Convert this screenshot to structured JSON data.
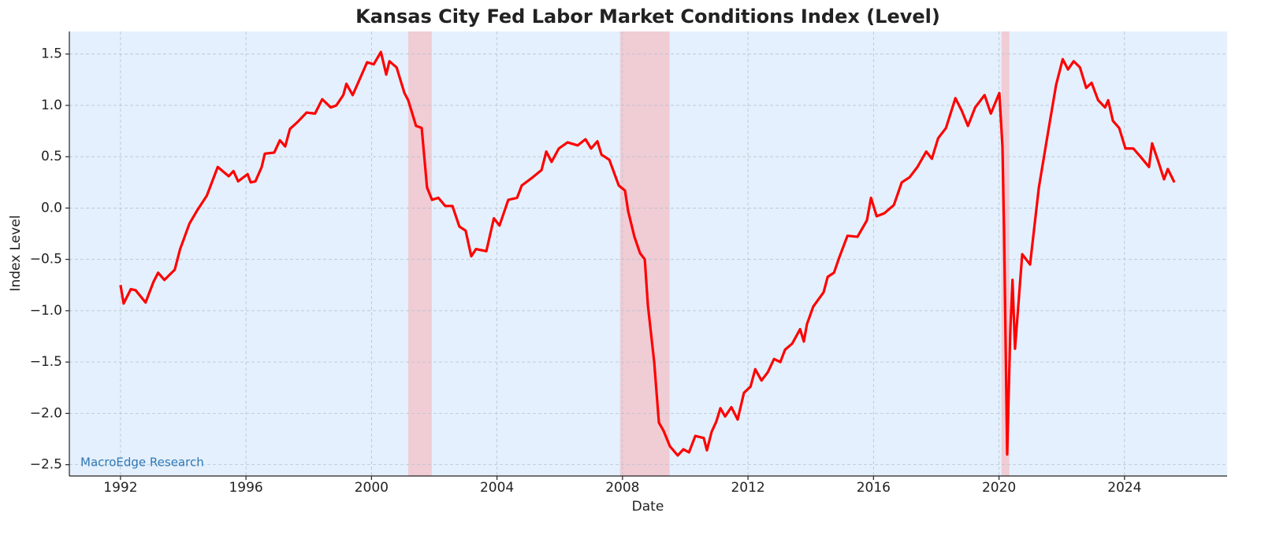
{
  "chart_data": {
    "type": "line",
    "title": "Kansas City Fed Labor Market Conditions Index (Level)",
    "x_label": "Date",
    "y_label": "Index Level",
    "annotation": "MacroEdge Research",
    "color": "#ff0000",
    "background": "#e4f0fd",
    "shade_color": "#f2c6ce",
    "grid": true,
    "xlim": [
      1990.37,
      2027.27
    ],
    "xticks": [
      1992,
      1996,
      2000,
      2004,
      2008,
      2012,
      2016,
      2020,
      2024
    ],
    "ylim": [
      -2.61,
      1.72
    ],
    "yticks": [
      {
        "value": -2.5,
        "label": "−2.5"
      },
      {
        "value": -2,
        "label": "−2.0"
      },
      {
        "value": -1.5,
        "label": "−1.5"
      },
      {
        "value": -1,
        "label": "−1.0"
      },
      {
        "value": -0.5,
        "label": "−0.5"
      },
      {
        "value": 0,
        "label": "0.0"
      },
      0.5,
      {
        "value": 1,
        "label": "1.0"
      },
      1.5
    ],
    "shaded_periods": [
      [
        2001.17,
        2001.92
      ],
      [
        2007.92,
        2009.5
      ],
      [
        2020.08,
        2020.33
      ]
    ],
    "x": [
      1992.0,
      1992.1,
      1992.33,
      1992.48,
      1992.8,
      1993.05,
      1993.2,
      1993.4,
      1993.73,
      1993.9,
      1994.2,
      1994.45,
      1994.75,
      1994.9,
      1995.1,
      1995.45,
      1995.6,
      1995.75,
      1996.05,
      1996.15,
      1996.3,
      1996.5,
      1996.6,
      1996.9,
      1997.08,
      1997.25,
      1997.4,
      1997.65,
      1997.93,
      1998.2,
      1998.43,
      1998.7,
      1998.88,
      1999.1,
      1999.2,
      1999.4,
      1999.66,
      1999.86,
      2000.07,
      2000.3,
      2000.47,
      2000.57,
      2000.8,
      2000.95,
      2001.05,
      2001.17,
      2001.27,
      2001.42,
      2001.6,
      2001.77,
      2001.93,
      2002.13,
      2002.35,
      2002.58,
      2002.8,
      2003.0,
      2003.18,
      2003.33,
      2003.66,
      2003.9,
      2004.08,
      2004.36,
      2004.64,
      2004.79,
      2005.14,
      2005.42,
      2005.57,
      2005.74,
      2005.97,
      2006.25,
      2006.57,
      2006.82,
      2007.0,
      2007.2,
      2007.33,
      2007.58,
      2007.88,
      2008.08,
      2008.18,
      2008.38,
      2008.56,
      2008.71,
      2008.81,
      2009.01,
      2009.16,
      2009.31,
      2009.51,
      2009.76,
      2009.94,
      2010.12,
      2010.32,
      2010.59,
      2010.69,
      2010.84,
      2010.99,
      2011.12,
      2011.27,
      2011.47,
      2011.67,
      2011.87,
      2012.08,
      2012.23,
      2012.43,
      2012.63,
      2012.83,
      2013.03,
      2013.18,
      2013.41,
      2013.66,
      2013.78,
      2013.88,
      2014.08,
      2014.41,
      2014.54,
      2014.74,
      2014.91,
      2015.17,
      2015.49,
      2015.79,
      2015.92,
      2016.1,
      2016.35,
      2016.65,
      2016.9,
      2017.15,
      2017.4,
      2017.68,
      2017.86,
      2018.06,
      2018.31,
      2018.61,
      2018.81,
      2019.01,
      2019.24,
      2019.54,
      2019.74,
      2020.01,
      2020.11,
      2020.16,
      2020.26,
      2020.36,
      2020.43,
      2020.51,
      2020.74,
      2020.99,
      2021.27,
      2021.57,
      2021.82,
      2022.03,
      2022.2,
      2022.38,
      2022.58,
      2022.78,
      2022.95,
      2023.16,
      2023.38,
      2023.48,
      2023.63,
      2023.83,
      2024.03,
      2024.28,
      2024.51,
      2024.78,
      2024.88,
      2025.08,
      2025.26,
      2025.38,
      2025.59
    ],
    "values": [
      -0.75,
      -0.93,
      -0.79,
      -0.8,
      -0.92,
      -0.72,
      -0.63,
      -0.7,
      -0.6,
      -0.4,
      -0.15,
      -0.02,
      0.12,
      0.24,
      0.4,
      0.31,
      0.36,
      0.26,
      0.33,
      0.25,
      0.26,
      0.4,
      0.53,
      0.54,
      0.66,
      0.6,
      0.77,
      0.84,
      0.93,
      0.92,
      1.06,
      0.98,
      1.0,
      1.1,
      1.21,
      1.1,
      1.28,
      1.42,
      1.4,
      1.52,
      1.3,
      1.43,
      1.37,
      1.22,
      1.12,
      1.05,
      0.95,
      0.8,
      0.78,
      0.2,
      0.08,
      0.1,
      0.02,
      0.02,
      -0.18,
      -0.22,
      -0.47,
      -0.4,
      -0.42,
      -0.1,
      -0.17,
      0.08,
      0.1,
      0.22,
      0.3,
      0.37,
      0.55,
      0.45,
      0.58,
      0.64,
      0.61,
      0.67,
      0.58,
      0.65,
      0.52,
      0.47,
      0.22,
      0.17,
      -0.03,
      -0.28,
      -0.44,
      -0.5,
      -0.95,
      -1.5,
      -2.09,
      -2.17,
      -2.32,
      -2.41,
      -2.35,
      -2.38,
      -2.22,
      -2.24,
      -2.36,
      -2.18,
      -2.08,
      -1.95,
      -2.03,
      -1.94,
      -2.06,
      -1.8,
      -1.74,
      -1.57,
      -1.68,
      -1.6,
      -1.47,
      -1.5,
      -1.38,
      -1.32,
      -1.18,
      -1.3,
      -1.13,
      -0.96,
      -0.82,
      -0.67,
      -0.63,
      -0.48,
      -0.27,
      -0.28,
      -0.12,
      0.1,
      -0.08,
      -0.05,
      0.03,
      0.25,
      0.3,
      0.4,
      0.55,
      0.48,
      0.68,
      0.78,
      1.07,
      0.95,
      0.8,
      0.98,
      1.1,
      0.92,
      1.12,
      0.6,
      -0.2,
      -2.4,
      -1.2,
      -0.7,
      -1.37,
      -0.45,
      -0.55,
      0.2,
      0.75,
      1.2,
      1.45,
      1.35,
      1.43,
      1.37,
      1.17,
      1.22,
      1.05,
      0.98,
      1.05,
      0.85,
      0.78,
      0.58,
      0.58,
      0.5,
      0.4,
      0.63,
      0.45,
      0.28,
      0.38,
      0.25
    ]
  }
}
